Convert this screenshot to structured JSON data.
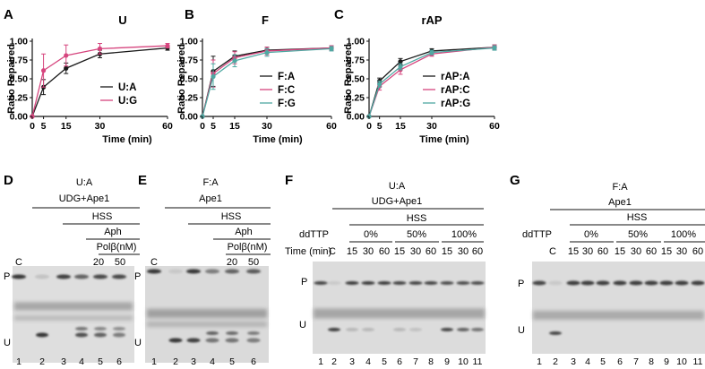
{
  "colors": {
    "black": "#1a1a1a",
    "pink": "#d6457e",
    "teal": "#4fa8a2",
    "gelBg": "#dcdcdc",
    "band": "#3a3a3a"
  },
  "chart_data": [
    {
      "panel": "A",
      "type": "line",
      "title": "U",
      "xlabel": "Time (min)",
      "ylabel": "Ratio Repaired",
      "xticks": [
        "0",
        "5",
        "15",
        "30",
        "60"
      ],
      "yticks": [
        "0.00",
        "0.25",
        "0.50",
        "0.75",
        "1.00"
      ],
      "xlim": [
        0,
        60
      ],
      "ylim": [
        0,
        1.0
      ],
      "x": [
        0,
        5,
        15,
        30,
        60
      ],
      "series": [
        {
          "name": "U:A",
          "values": [
            0,
            0.39,
            0.64,
            0.83,
            0.91
          ],
          "err": [
            0,
            0.1,
            0.07,
            0.05,
            0.03
          ],
          "color": "#1a1a1a"
        },
        {
          "name": "U:G",
          "values": [
            0,
            0.61,
            0.81,
            0.9,
            0.94
          ],
          "err": [
            0,
            0.22,
            0.14,
            0.07,
            0.03
          ],
          "color": "#d6457e"
        }
      ]
    },
    {
      "panel": "B",
      "type": "line",
      "title": "F",
      "xlabel": "Time (min)",
      "ylabel": "Ratio Repaired",
      "xticks": [
        "0",
        "5",
        "15",
        "30",
        "60"
      ],
      "yticks": [
        "0.00",
        "0.25",
        "0.50",
        "0.75",
        "1.00"
      ],
      "xlim": [
        0,
        60
      ],
      "ylim": [
        0,
        1.0
      ],
      "x": [
        0,
        5,
        15,
        30,
        60
      ],
      "series": [
        {
          "name": "F:A",
          "values": [
            0,
            0.6,
            0.8,
            0.88,
            0.91
          ],
          "err": [
            0,
            0.2,
            0.07,
            0.04,
            0.03
          ],
          "color": "#1a1a1a"
        },
        {
          "name": "F:C",
          "values": [
            0,
            0.57,
            0.78,
            0.87,
            0.91
          ],
          "err": [
            0,
            0.18,
            0.08,
            0.05,
            0.03
          ],
          "color": "#d6457e"
        },
        {
          "name": "F:G",
          "values": [
            0,
            0.53,
            0.74,
            0.85,
            0.9
          ],
          "err": [
            0,
            0.17,
            0.08,
            0.05,
            0.03
          ],
          "color": "#4fa8a2"
        }
      ]
    },
    {
      "panel": "C",
      "type": "line",
      "title": "rAP",
      "xlabel": "Time (min)",
      "ylabel": "Ratio Repaired",
      "xticks": [
        "0",
        "5",
        "15",
        "30",
        "60"
      ],
      "yticks": [
        "0.00",
        "0.25",
        "0.50",
        "0.75",
        "1.00"
      ],
      "xlim": [
        0,
        60
      ],
      "ylim": [
        0,
        1.0
      ],
      "x": [
        0,
        5,
        15,
        30,
        60
      ],
      "series": [
        {
          "name": "rAP:A",
          "values": [
            0,
            0.47,
            0.73,
            0.87,
            0.92
          ],
          "err": [
            0,
            0.04,
            0.04,
            0.03,
            0.03
          ],
          "color": "#1a1a1a"
        },
        {
          "name": "rAP:C",
          "values": [
            0,
            0.4,
            0.62,
            0.83,
            0.92
          ],
          "err": [
            0,
            0.05,
            0.06,
            0.03,
            0.03
          ],
          "color": "#d6457e"
        },
        {
          "name": "rAP:G",
          "values": [
            0,
            0.43,
            0.66,
            0.85,
            0.91
          ],
          "err": [
            0,
            0.04,
            0.04,
            0.03,
            0.03
          ],
          "color": "#4fa8a2"
        }
      ]
    }
  ],
  "gels": {
    "D": {
      "letter": "D",
      "substrate": "U:A",
      "enzyme": "UDG+Ape1",
      "hss": "HSS",
      "aph": "Aph",
      "polb": "Polβ(nM)",
      "conc1": "20",
      "conc2": "50",
      "label_c": "C",
      "label_p": "P",
      "label_u": "U",
      "lanes": [
        "1",
        "2",
        "3",
        "4",
        "5",
        "6"
      ]
    },
    "E": {
      "letter": "E",
      "substrate": "F:A",
      "enzyme": "Ape1",
      "hss": "HSS",
      "aph": "Aph",
      "polb": "Polβ(nM)",
      "conc1": "20",
      "conc2": "50",
      "label_c": "C",
      "label_p": "P",
      "label_u": "U",
      "lanes": [
        "1",
        "2",
        "3",
        "4",
        "5",
        "6"
      ]
    },
    "F": {
      "letter": "F",
      "substrate": "U:A",
      "enzyme": "UDG+Ape1",
      "hss": "HSS",
      "ddttp": "ddTTP",
      "pct": [
        "0%",
        "50%",
        "100%"
      ],
      "time_label": "Time (min)",
      "label_c": "C",
      "times": [
        "15",
        "30",
        "60",
        "15",
        "30",
        "60",
        "15",
        "30",
        "60"
      ],
      "label_p": "P",
      "label_u": "U",
      "lanes": [
        "1",
        "2",
        "3",
        "4",
        "5",
        "6",
        "7",
        "8",
        "9",
        "10",
        "11"
      ]
    },
    "G": {
      "letter": "G",
      "substrate": "F:A",
      "enzyme": "Ape1",
      "hss": "HSS",
      "ddttp": "ddTTP",
      "pct": [
        "0%",
        "50%",
        "100%"
      ],
      "label_c": "C",
      "times": [
        "15",
        "30",
        "60",
        "15",
        "30",
        "60",
        "15",
        "30",
        "60"
      ],
      "label_p": "P",
      "label_u": "U",
      "lanes": [
        "1",
        "2",
        "3",
        "4",
        "5",
        "6",
        "7",
        "8",
        "9",
        "10",
        "11"
      ]
    }
  }
}
